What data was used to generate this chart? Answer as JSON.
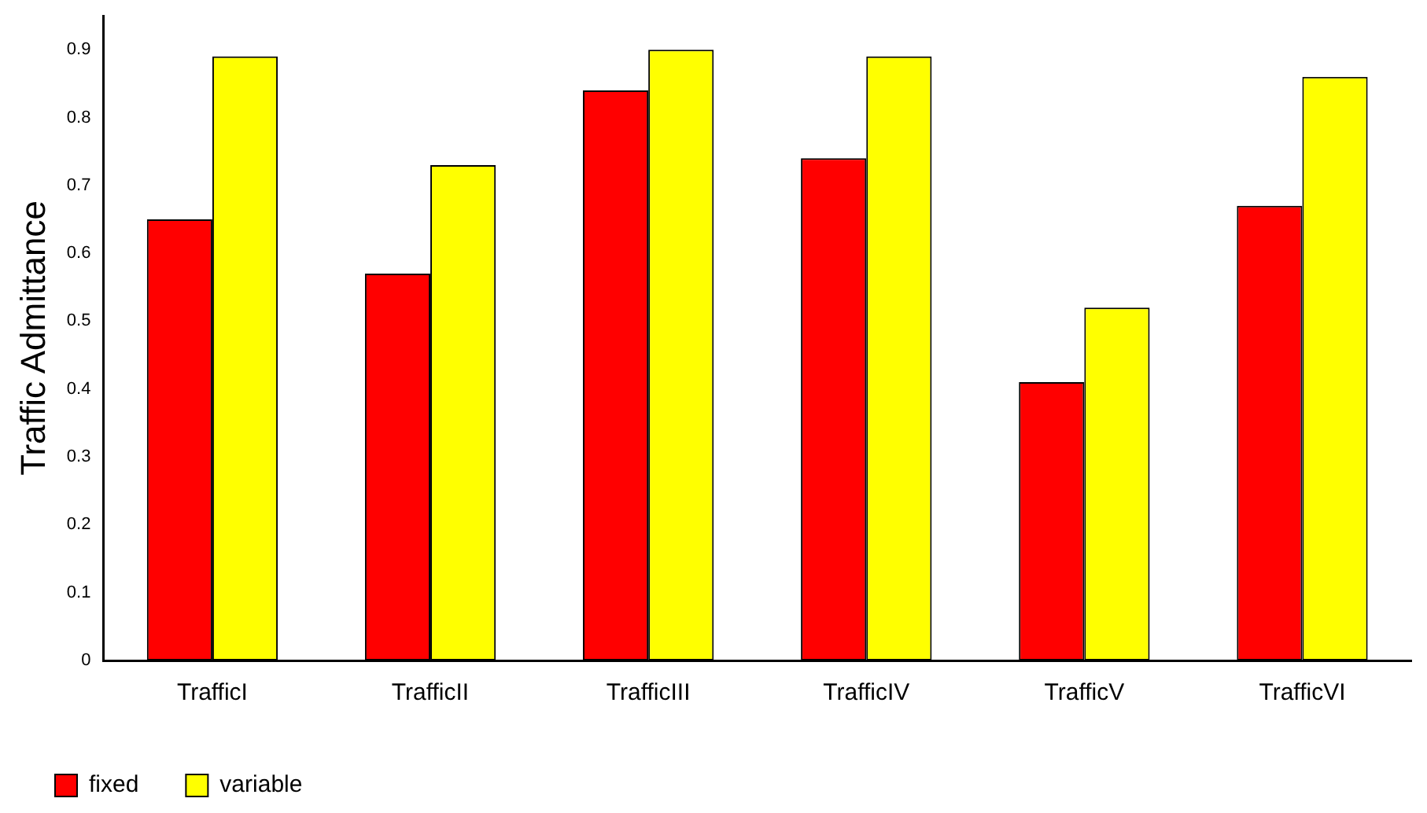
{
  "chart_data": {
    "type": "bar",
    "ylabel": "Traffic Admittance",
    "categories": [
      "TrafficI",
      "TrafficII",
      "TrafficIII",
      "TrafficIV",
      "TrafficV",
      "TrafficVI"
    ],
    "series": [
      {
        "name": "fixed",
        "color": "#ff0000",
        "values": [
          0.65,
          0.57,
          0.84,
          0.74,
          0.41,
          0.67
        ]
      },
      {
        "name": "variable",
        "color": "#ffff00",
        "values": [
          0.89,
          0.73,
          0.9,
          0.89,
          0.52,
          0.86
        ]
      }
    ],
    "ylim": [
      0,
      0.95
    ],
    "yticks": [
      0,
      0.1,
      0.2,
      0.3,
      0.4,
      0.5,
      0.6,
      0.7,
      0.8,
      0.9
    ],
    "grid": false,
    "legend": "bottom left"
  }
}
